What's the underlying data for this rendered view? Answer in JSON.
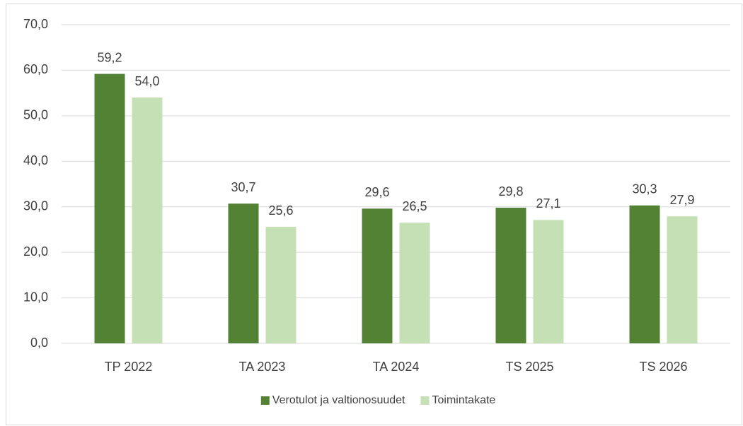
{
  "chart_data": {
    "type": "bar",
    "categories": [
      "TP 2022",
      "TA 2023",
      "TA 2024",
      "TS 2025",
      "TS 2026"
    ],
    "series": [
      {
        "name": "Verotulot ja valtionosuudet",
        "color": "#548235",
        "values": [
          59.2,
          30.7,
          29.6,
          29.8,
          30.3
        ],
        "value_labels": [
          "59,2",
          "30,7",
          "29,6",
          "29,8",
          "30,3"
        ]
      },
      {
        "name": "Toimintakate",
        "color": "#c5e0b4",
        "values": [
          54.0,
          25.6,
          26.5,
          27.1,
          27.9
        ],
        "value_labels": [
          "54,0",
          "25,6",
          "26,5",
          "27,1",
          "27,9"
        ]
      }
    ],
    "ylim": [
      0,
      70
    ],
    "yticks": [
      {
        "value": 0,
        "label": "0,0"
      },
      {
        "value": 10,
        "label": "10,0"
      },
      {
        "value": 20,
        "label": "20,0"
      },
      {
        "value": 30,
        "label": "30,0"
      },
      {
        "value": 40,
        "label": "40,0"
      },
      {
        "value": 50,
        "label": "50,0"
      },
      {
        "value": 60,
        "label": "60,0"
      },
      {
        "value": 70,
        "label": "70,0"
      }
    ],
    "grid": true,
    "legend": "bottom"
  }
}
